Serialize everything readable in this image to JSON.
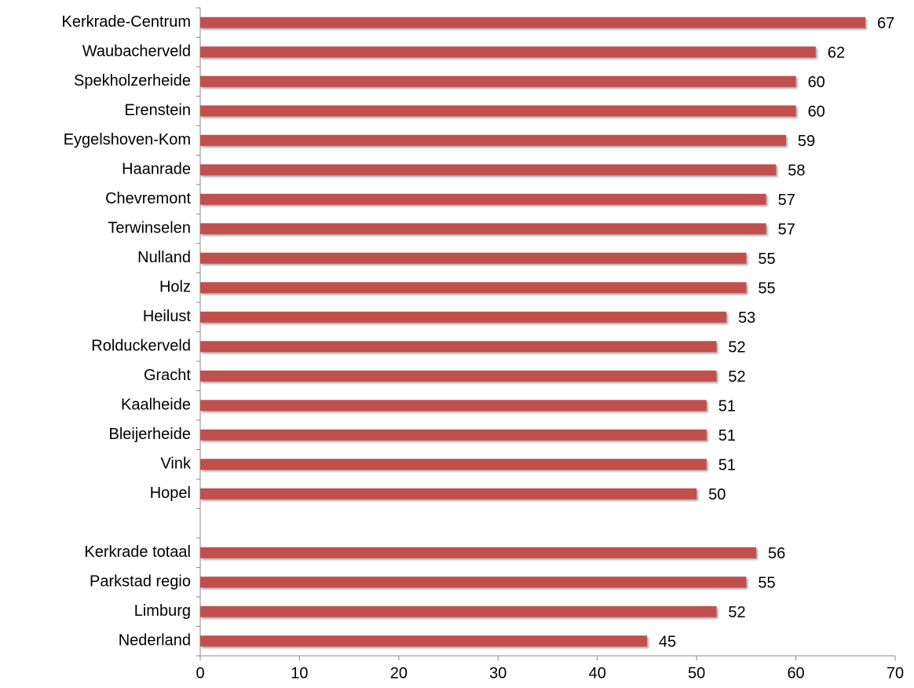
{
  "chart_data": {
    "type": "bar",
    "orientation": "horizontal",
    "categories": [
      "Kerkrade-Centrum",
      "Waubacherveld",
      "Spekholzerheide",
      "Erenstein",
      "Eygelshoven-Kom",
      "Haanrade",
      "Chevremont",
      "Terwinselen",
      "Nulland",
      "Holz",
      "Heilust",
      "Rolduckerveld",
      "Gracht",
      "Kaalheide",
      "Bleijerheide",
      "Vink",
      "Hopel",
      null,
      "Kerkrade totaal",
      "Parkstad regio",
      "Limburg",
      "Nederland"
    ],
    "values": [
      67,
      62,
      60,
      60,
      59,
      58,
      57,
      57,
      55,
      55,
      53,
      52,
      52,
      51,
      51,
      51,
      50,
      null,
      56,
      55,
      52,
      45
    ],
    "color": "#c0504d",
    "xlim": [
      0,
      70
    ],
    "xticks": [
      0,
      10,
      20,
      30,
      40,
      50,
      60,
      70
    ],
    "grid": false
  }
}
